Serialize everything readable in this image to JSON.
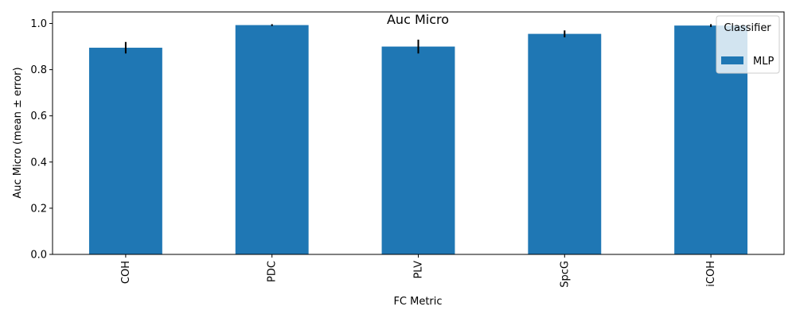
{
  "chart_data": {
    "type": "bar",
    "title": "Auc Micro",
    "xlabel": "FC Metric",
    "ylabel": "Auc Micro (mean ± error)",
    "categories": [
      "COH",
      "PDC",
      "PLV",
      "SpcG",
      "iCOH"
    ],
    "series": [
      {
        "name": "MLP",
        "values": [
          0.895,
          0.993,
          0.9,
          0.955,
          0.991
        ],
        "errors": [
          0.025,
          0.004,
          0.03,
          0.015,
          0.006
        ],
        "color": "#1f77b4"
      }
    ],
    "ylim": [
      0,
      1.05
    ],
    "yticks": [
      "0.0",
      "0.2",
      "0.4",
      "0.6",
      "0.8",
      "1.0"
    ],
    "grid": false,
    "legend": {
      "title": "Classifier",
      "placement": "top-right"
    }
  }
}
